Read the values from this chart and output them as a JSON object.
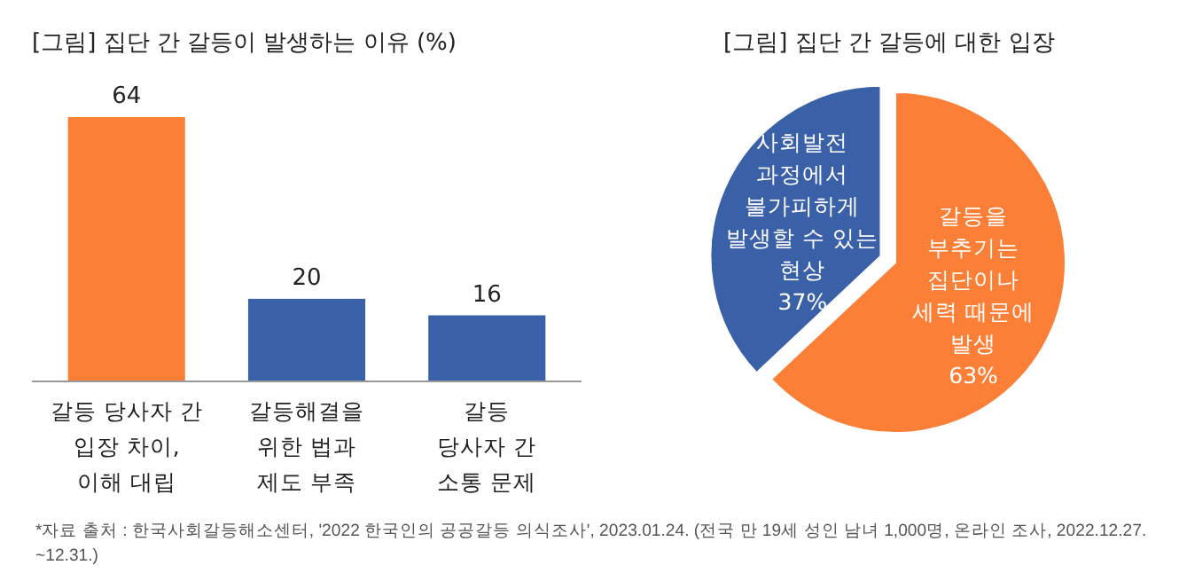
{
  "chart_data": [
    {
      "type": "bar",
      "title": "[그림] 집단 간 갈등이 발생하는 이유 (%)",
      "categories": [
        "갈등 당사자 간\n입장 차이,\n이해 대립",
        "갈등해결을\n위한 법과\n제도 부족",
        "갈등\n당사자 간\n소통 문제"
      ],
      "values": [
        64,
        20,
        16
      ],
      "colors": [
        "#fb7f36",
        "#3a61a8",
        "#3a61a8"
      ],
      "data_labels": true,
      "annotations": [
        "*자료 출처 : 한국사회갈등해소센터, '2022 한국인의 공공갈등 의식조사', 2023.01.24. (전국 만 19세 성인 남녀 1,000명, 온라인 조사, 2022.12.27.\n~12.31.)"
      ]
    },
    {
      "type": "pie",
      "title": "[그림] 집단 간 갈등에 대한 입장",
      "categories": [
        "갈등을\n부추기는\n집단이나\n세력 때문에\n발생",
        "사회발전\n과정에서\n불가피하게\n발생할 수 있는\n현상"
      ],
      "values": [
        63,
        37
      ],
      "colors": [
        "#fb7f36",
        "#3a61a8"
      ],
      "value_labels": [
        "63%",
        "37%"
      ]
    }
  ]
}
